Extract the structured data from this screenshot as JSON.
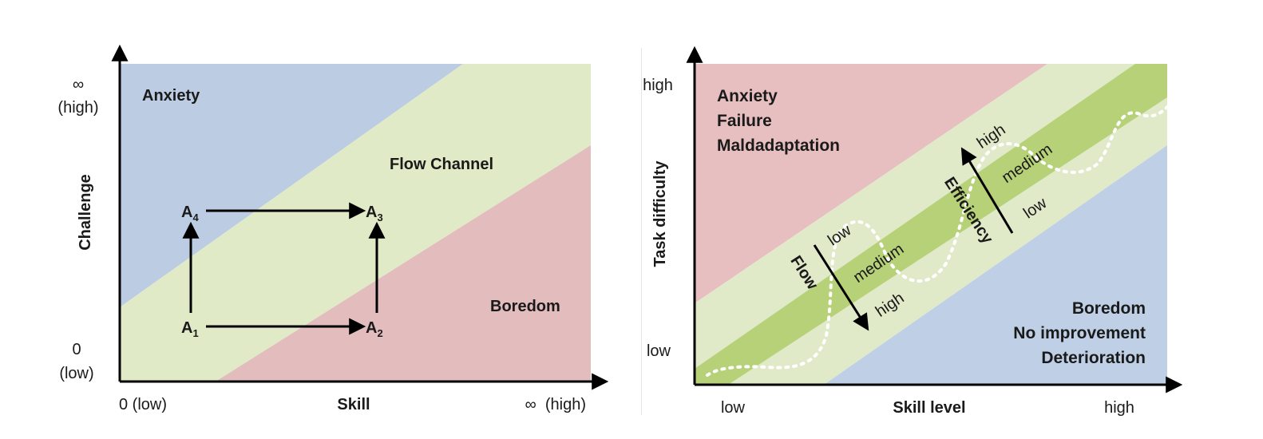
{
  "left_diagram": {
    "y_axis_label": "Challenge",
    "x_axis_label": "Skill",
    "y_top_tick": [
      "∞",
      "(high)"
    ],
    "y_bottom_tick": [
      "0",
      "(low)"
    ],
    "x_left_tick": "0 (low)",
    "x_right_tick": "∞  (high)",
    "region_anxiety": "Anxiety",
    "region_flow": "Flow Channel",
    "region_boredom": "Boredom",
    "points": [
      {
        "letter": "A",
        "sub": "1"
      },
      {
        "letter": "A",
        "sub": "2"
      },
      {
        "letter": "A",
        "sub": "3"
      },
      {
        "letter": "A",
        "sub": "4"
      }
    ],
    "colors": {
      "anxiety": "#bccde3",
      "flow": "#e1eac7",
      "boredom": "#e3bcbd"
    }
  },
  "right_diagram": {
    "y_axis_label": "Task difficulty",
    "x_axis_label": "Skill level",
    "y_high": "high",
    "y_low": "low",
    "x_low": "low",
    "x_high": "high",
    "region_anxiety": [
      "Anxiety",
      "Failure",
      "Maldadaptation"
    ],
    "region_boredom": [
      "Boredom",
      "No improvement",
      "Deterioration"
    ],
    "flow_arrow_label": "Flow",
    "efficiency_arrow_label": "Efficiency",
    "flow_levels": [
      "low",
      "medium",
      "high"
    ],
    "efficiency_levels": [
      "high",
      "medium",
      "low"
    ],
    "colors": {
      "anxiety": "#e7bfc0",
      "band_light": "#e0eac8",
      "band_dark": "#b7d178",
      "boredom": "#bfd0e6"
    }
  }
}
